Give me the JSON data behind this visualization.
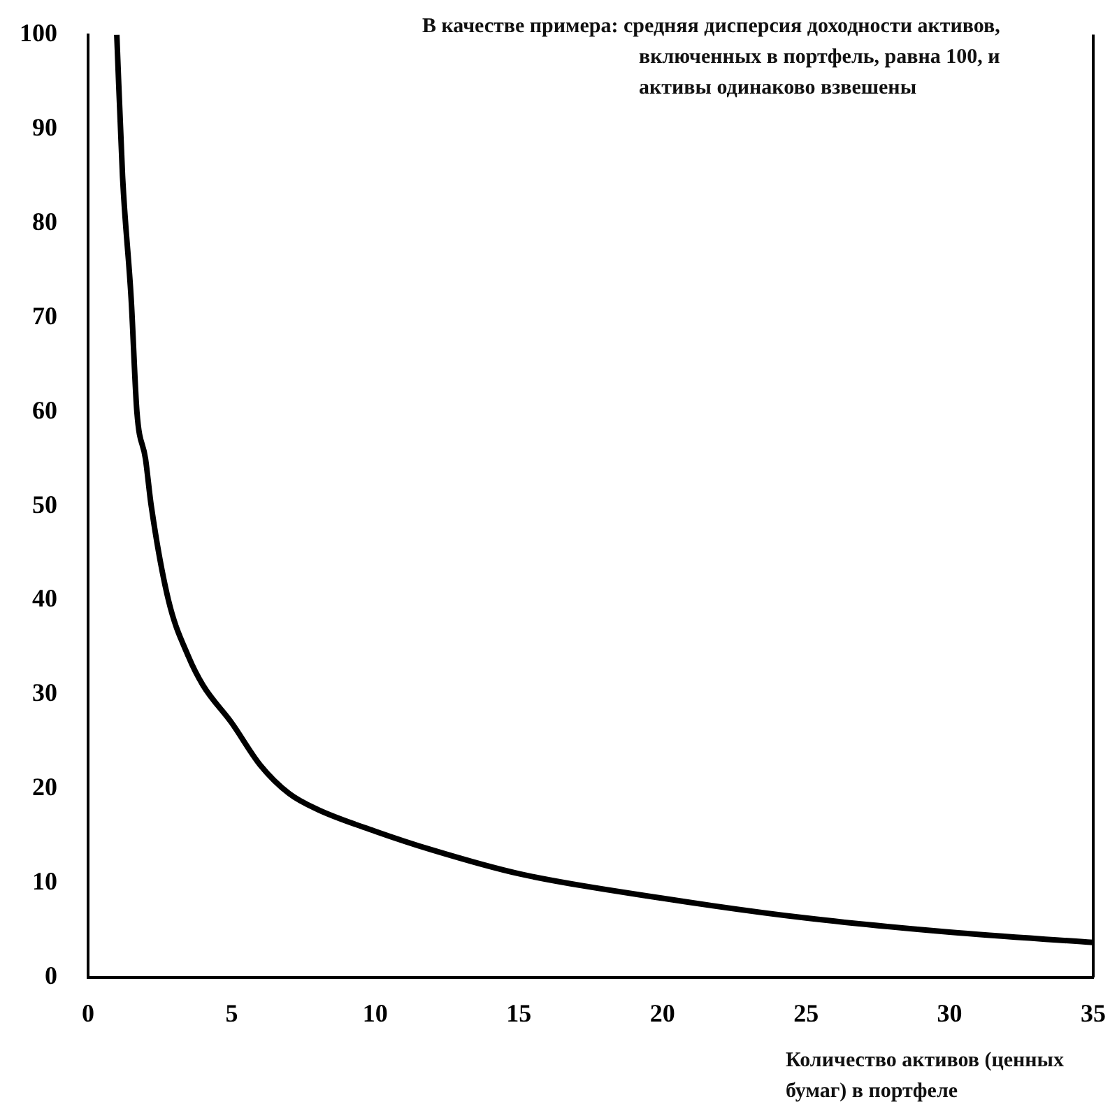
{
  "chart_data": {
    "type": "line",
    "xlabel": "Количество активов (ценных бумаг) в портфеле",
    "annotations": [
      "В качестве примера: средняя дисперсия доходности активов, включенных в портфель, равна 100, и активы одинаково взвешены"
    ],
    "series": [
      {
        "color": "#000000",
        "x": [
          1,
          1.2,
          1.5,
          1.7,
          2,
          2.2,
          2.8,
          3.5,
          4,
          5,
          6,
          7,
          8,
          10,
          12,
          15,
          20,
          25,
          30,
          35
        ],
        "values": [
          100,
          85,
          72,
          60,
          55,
          50,
          40,
          34,
          31,
          27,
          22.5,
          19.5,
          17.8,
          15.5,
          13.5,
          11,
          8.4,
          6.3,
          4.8,
          3.7
        ]
      }
    ],
    "xlim": [
      0,
      35
    ],
    "xticks": [
      0,
      5,
      10,
      15,
      20,
      25,
      30,
      35
    ],
    "ylim": [
      0,
      100
    ],
    "yticks": [
      0,
      10,
      20,
      30,
      40,
      50,
      60,
      70,
      80,
      90,
      100
    ],
    "grid": false,
    "legend": false,
    "marker": "none",
    "line_style": "solid"
  }
}
